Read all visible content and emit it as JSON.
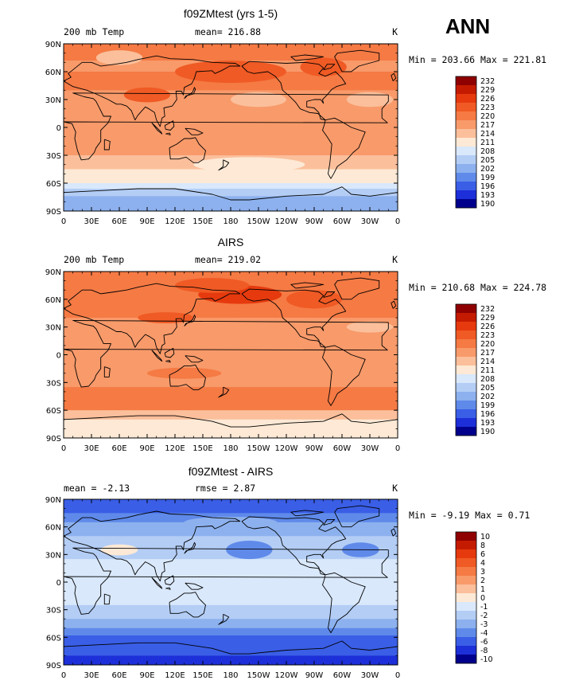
{
  "season": "ANN",
  "longitude_ticks": [
    "0",
    "30E",
    "60E",
    "90E",
    "120E",
    "150E",
    "180",
    "150W",
    "120W",
    "90W",
    "60W",
    "30W",
    "0"
  ],
  "latitude_ticks": [
    "90N",
    "60N",
    "30N",
    "0",
    "30S",
    "60S",
    "90S"
  ],
  "panels": [
    {
      "title": "f09ZMtest (yrs 1-5)",
      "left_label": "200 mb Temp",
      "center_label": "mean= 216.88",
      "units": "K",
      "minmax": "Min = 203.66 Max = 221.81",
      "levels": [
        "232",
        "229",
        "226",
        "223",
        "220",
        "217",
        "214",
        "211",
        "208",
        "205",
        "202",
        "199",
        "196",
        "193",
        "190"
      ],
      "colors": [
        "#8f0000",
        "#c41b00",
        "#e63a0e",
        "#f05a24",
        "#f57a44",
        "#f89a6a",
        "#fbbf9b",
        "#fde9d5",
        "#d9e8fb",
        "#b3cdf5",
        "#8db1ee",
        "#5f8aea",
        "#3a5ee6",
        "#1d2fd8",
        "#00008c"
      ],
      "bands": [
        {
          "lat0": 90,
          "lat1": 72,
          "color": "#f57a44"
        },
        {
          "lat0": 72,
          "lat1": 60,
          "color": "#f89a6a"
        },
        {
          "lat0": 60,
          "lat1": 40,
          "color": "#f57a44"
        },
        {
          "lat0": 40,
          "lat1": 15,
          "color": "#f89a6a"
        },
        {
          "lat0": 15,
          "lat1": -10,
          "color": "#f89a6a"
        },
        {
          "lat0": -10,
          "lat1": -30,
          "color": "#f89a6a"
        },
        {
          "lat0": -30,
          "lat1": -45,
          "color": "#fbbf9b"
        },
        {
          "lat0": -45,
          "lat1": -60,
          "color": "#fde9d5"
        },
        {
          "lat0": -60,
          "lat1": -66,
          "color": "#d9e8fb"
        },
        {
          "lat0": -66,
          "lat1": -74,
          "color": "#b3cdf5"
        },
        {
          "lat0": -74,
          "lat1": -90,
          "color": "#8db1ee"
        }
      ],
      "blobs": [
        {
          "lon": 180,
          "lat": 60,
          "rx": 60,
          "ry": 12,
          "color": "#f05a24"
        },
        {
          "lon": 90,
          "lat": 35,
          "rx": 25,
          "ry": 8,
          "color": "#f05a24"
        },
        {
          "lon": 210,
          "lat": 30,
          "rx": 30,
          "ry": 8,
          "color": "#fbbf9b"
        },
        {
          "lon": 330,
          "lat": 30,
          "rx": 25,
          "ry": 8,
          "color": "#fbbf9b"
        },
        {
          "lon": 280,
          "lat": 65,
          "rx": 25,
          "ry": 10,
          "color": "#f05a24"
        },
        {
          "lon": 60,
          "lat": 75,
          "rx": 25,
          "ry": 8,
          "color": "#fbbf9b"
        },
        {
          "lon": 200,
          "lat": -40,
          "rx": 60,
          "ry": 8,
          "color": "#fde9d5"
        }
      ]
    },
    {
      "title": "AIRS",
      "left_label": "200 mb Temp",
      "center_label": "mean= 219.02",
      "units": "K",
      "minmax": "Min = 210.68 Max = 224.78",
      "levels": [
        "232",
        "229",
        "226",
        "223",
        "220",
        "217",
        "214",
        "211",
        "208",
        "205",
        "202",
        "199",
        "196",
        "193",
        "190"
      ],
      "colors": [
        "#8f0000",
        "#c41b00",
        "#e63a0e",
        "#f05a24",
        "#f57a44",
        "#f89a6a",
        "#fbbf9b",
        "#fde9d5",
        "#d9e8fb",
        "#b3cdf5",
        "#8db1ee",
        "#5f8aea",
        "#3a5ee6",
        "#1d2fd8",
        "#00008c"
      ],
      "bands": [
        {
          "lat0": 90,
          "lat1": 70,
          "color": "#f57a44"
        },
        {
          "lat0": 70,
          "lat1": 40,
          "color": "#f57a44"
        },
        {
          "lat0": 40,
          "lat1": 15,
          "color": "#f89a6a"
        },
        {
          "lat0": 15,
          "lat1": -35,
          "color": "#f89a6a"
        },
        {
          "lat0": -35,
          "lat1": -60,
          "color": "#f57a44"
        },
        {
          "lat0": -60,
          "lat1": -70,
          "color": "#fbbf9b"
        },
        {
          "lat0": -70,
          "lat1": -90,
          "color": "#fde9d5"
        }
      ],
      "blobs": [
        {
          "lon": 190,
          "lat": 65,
          "rx": 45,
          "ry": 10,
          "color": "#e63a0e"
        },
        {
          "lon": 270,
          "lat": 60,
          "rx": 30,
          "ry": 10,
          "color": "#f05a24"
        },
        {
          "lon": 160,
          "lat": 75,
          "rx": 40,
          "ry": 8,
          "color": "#f05a24"
        },
        {
          "lon": 110,
          "lat": 40,
          "rx": 30,
          "ry": 6,
          "color": "#f05a24"
        },
        {
          "lon": 330,
          "lat": 30,
          "rx": 25,
          "ry": 6,
          "color": "#fbbf9b"
        },
        {
          "lon": 130,
          "lat": -20,
          "rx": 40,
          "ry": 6,
          "color": "#f57a44"
        }
      ]
    },
    {
      "title": "f09ZMtest - AIRS",
      "left_label": "mean =   -2.13",
      "center_label": "rmse =    2.87",
      "units": "K",
      "minmax": "Min =   -9.19 Max =    0.71",
      "levels": [
        "10",
        "8",
        "6",
        "4",
        "3",
        "2",
        "1",
        "0",
        "-1",
        "-2",
        "-3",
        "-4",
        "-6",
        "-8",
        "-10"
      ],
      "colors": [
        "#8f0000",
        "#c41b00",
        "#e63a0e",
        "#f05a24",
        "#f57a44",
        "#f89a6a",
        "#fbbf9b",
        "#fde9d5",
        "#d9e8fb",
        "#b3cdf5",
        "#8db1ee",
        "#5f8aea",
        "#3a5ee6",
        "#1d2fd8",
        "#00008c"
      ],
      "bands": [
        {
          "lat0": 90,
          "lat1": 75,
          "color": "#3a5ee6"
        },
        {
          "lat0": 75,
          "lat1": 65,
          "color": "#5f8aea"
        },
        {
          "lat0": 65,
          "lat1": 50,
          "color": "#8db1ee"
        },
        {
          "lat0": 50,
          "lat1": 25,
          "color": "#b3cdf5"
        },
        {
          "lat0": 25,
          "lat1": -25,
          "color": "#d9e8fb"
        },
        {
          "lat0": -25,
          "lat1": -40,
          "color": "#b3cdf5"
        },
        {
          "lat0": -40,
          "lat1": -50,
          "color": "#8db1ee"
        },
        {
          "lat0": -50,
          "lat1": -58,
          "color": "#5f8aea"
        },
        {
          "lat0": -58,
          "lat1": -80,
          "color": "#3a5ee6"
        },
        {
          "lat0": -80,
          "lat1": -90,
          "color": "#1d2fd8"
        }
      ],
      "blobs": [
        {
          "lon": 200,
          "lat": 35,
          "rx": 25,
          "ry": 10,
          "color": "#5f8aea"
        },
        {
          "lon": 320,
          "lat": 35,
          "rx": 20,
          "ry": 8,
          "color": "#5f8aea"
        },
        {
          "lon": 60,
          "lat": 35,
          "rx": 20,
          "ry": 6,
          "color": "#fde9d5"
        },
        {
          "lon": 180,
          "lat": 65,
          "rx": 50,
          "ry": 6,
          "color": "#8db1ee"
        }
      ]
    }
  ]
}
